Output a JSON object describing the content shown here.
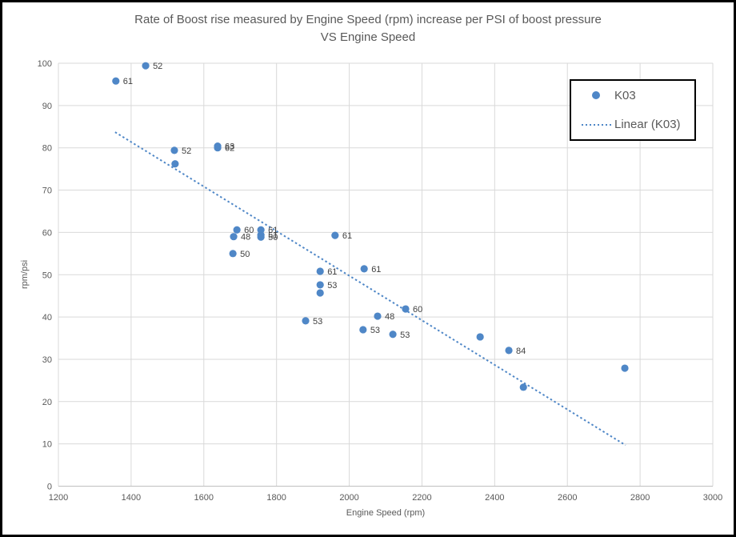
{
  "chart_data": {
    "type": "scatter",
    "title_line1": "Rate of Boost rise measured by Engine Speed (rpm) increase per PSI of boost pressure",
    "title_line2": "VS Engine Speed",
    "xlabel": "Engine Speed (rpm)",
    "ylabel": "rpm/psi",
    "xlim": [
      1200,
      3000
    ],
    "ylim": [
      0,
      100
    ],
    "x_tick_step": 200,
    "y_tick_step": 10,
    "grid": true,
    "legend_position": "top-right",
    "series": [
      {
        "name": "K03",
        "points": [
          {
            "x": 1440,
            "y": 99.4,
            "label": "52"
          },
          {
            "x": 1358,
            "y": 95.8,
            "label": "61"
          },
          {
            "x": 1519,
            "y": 79.4,
            "label": "52"
          },
          {
            "x": 1638,
            "y": 80.4,
            "label": "63"
          },
          {
            "x": 1638,
            "y": 80.0,
            "label": "62"
          },
          {
            "x": 1521,
            "y": 76.2,
            "label": ""
          },
          {
            "x": 1691,
            "y": 60.6,
            "label": "60"
          },
          {
            "x": 1682,
            "y": 59.0,
            "label": "48"
          },
          {
            "x": 1757,
            "y": 60.6,
            "label": "61"
          },
          {
            "x": 1757,
            "y": 59.4,
            "label": "51"
          },
          {
            "x": 1757,
            "y": 58.9,
            "label": "50"
          },
          {
            "x": 1680,
            "y": 55.0,
            "label": "50"
          },
          {
            "x": 1961,
            "y": 59.3,
            "label": "61"
          },
          {
            "x": 1920,
            "y": 50.8,
            "label": "61"
          },
          {
            "x": 2041,
            "y": 51.4,
            "label": "61"
          },
          {
            "x": 1920,
            "y": 47.6,
            "label": "53"
          },
          {
            "x": 1920,
            "y": 45.7,
            "label": ""
          },
          {
            "x": 2155,
            "y": 41.9,
            "label": "60"
          },
          {
            "x": 2078,
            "y": 40.2,
            "label": "48"
          },
          {
            "x": 1880,
            "y": 39.1,
            "label": "53"
          },
          {
            "x": 2038,
            "y": 37.0,
            "label": "53"
          },
          {
            "x": 2120,
            "y": 35.9,
            "label": "53"
          },
          {
            "x": 2360,
            "y": 35.3,
            "label": ""
          },
          {
            "x": 2439,
            "y": 32.1,
            "label": "84"
          },
          {
            "x": 2758,
            "y": 27.9,
            "label": ""
          },
          {
            "x": 2479,
            "y": 23.4,
            "label": ""
          }
        ]
      }
    ],
    "trendline": {
      "name": "Linear (K03)",
      "x1": 1356,
      "y1": 83.7,
      "x2": 2760,
      "y2": 9.7
    },
    "legend": [
      "K03",
      "Linear (K03)"
    ],
    "colors": {
      "series": "#4F87C7",
      "grid": "#D9D9D9",
      "axis_line": "#BFBFBF",
      "text": "#595959",
      "label_text": "#404040",
      "legend_border": "#000000",
      "frame_border": "#000000"
    }
  }
}
